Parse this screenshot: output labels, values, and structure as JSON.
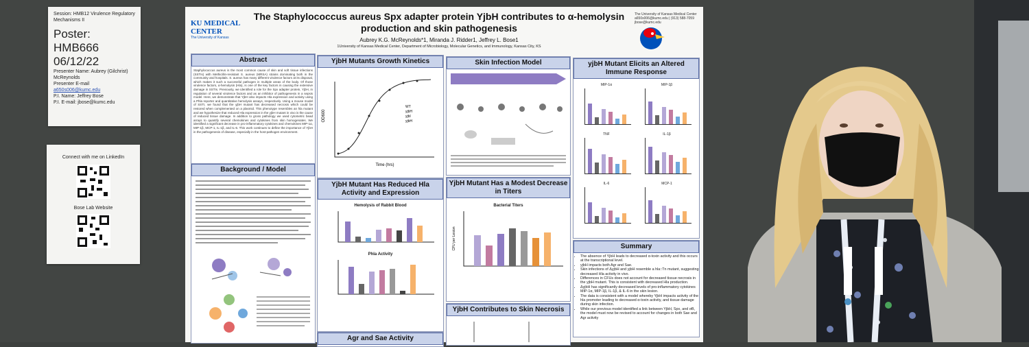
{
  "session_card": {
    "session": "Session: HMB12 Virulence Regulatory Mechanisms II",
    "poster_label": "Poster:",
    "poster_number": "HMB666",
    "date": "06/12/22",
    "presenter_name": "Presenter Name: Aubrey (Gilchrist) McReynolds",
    "presenter_email_label": "Presenter E-mail",
    "presenter_email": "a650s006@kumc.edu",
    "pi_name": "P.I. Name: Jeffrey Bose",
    "pi_email": "P.I. E-mail: jbose@kumc.edu"
  },
  "linkedin_card": {
    "connect": "Connect with me on LinkedIn",
    "lab_site": "Bose Lab Website"
  },
  "poster": {
    "logo": "KU MEDICAL CENTER",
    "logo_sub": "The University of Kansas",
    "title": "The Staphylococcus aureus Spx adapter protein YjbH contributes to α-hemolysin production and skin pathogenesis",
    "authors": "Aubrey K.G. McReynolds*1, Miranda J. Ridder1, Jeffrey L. Bose1",
    "affiliation": "1University of Kansas Medical Center, Department of Microbiology, Molecular Genetics, and Immunology, Kansas City, KS",
    "contact": "The University of Kansas Medical Center a650s006@kumc.edu | (913) 588-7059 jbose@kumc.edu",
    "abstract": {
      "heading": "Abstract",
      "text": "Staphylococcus aureus is the most common cause of skin and soft tissue infections (SSTIs) with Methicillin-resistant S. aureus (MRSA) strains dominating both in the community and hospitals. S. aureus has many different virulence factors at its disposal, which makes it such a successful pathogen in multiple areas of the body. Of those virulence factors, α-hemolysin (Hla), is one of the key factors in causing the extensive damage in SSTIs. Previously, we identified a role for the Spx adapter protein, YjbH, in regulation of several virulence factors and as an inhibitor of pathogenesis in a sepsis model. Here, we demonstrate that YjbH also impacts Hla expression and activity using a Phla reporter and quantitative hemolysis assays, respectively. Using a mouse model of SSTI, we found that the yjbH mutant has decreased necrosis which could be restored when complemented on a plasmid. This phenotype resembles an hla mutant and we hypothesize that reduced Hla expression in the yjbH mutant in vivo is the cause of reduced tissue damage. In addition to gross pathology we used cytometric bead arrays to quantify several chemokines and cytokines from skin homogenates. We identified a significant decrease in pro-inflammatory cytokines and chemokines MIP-1α, MIP-1β, MCP-1, IL-1β, and IL-6. This work continues to define the importance of YjbH in the pathogenesis of disease, especially in the host-pathogen environment."
    },
    "background": {
      "heading": "Background / Model"
    },
    "growth": {
      "heading": "YjbH Mutants Growth Kinetics",
      "y_label": "OD600",
      "x_label": "Time (hrs)",
      "legend": [
        "WT",
        "yjbH",
        "yjbI",
        "yjbH"
      ]
    },
    "hla": {
      "heading": "YjbH Mutant Has Reduced Hla Activity and Expression",
      "chart1": "Hemolysis of Rabbit Blood",
      "chart2": "Phla Activity"
    },
    "agr": {
      "heading": "Agr and Sae Activity"
    },
    "skin_model": {
      "heading": "Skin Infection Model"
    },
    "titers": {
      "heading": "YjbH Mutant Has a Modest Decrease in Titers",
      "chart": "Bacterial Titers",
      "y_label": "CFU per Lesion"
    },
    "necrosis": {
      "heading": "YjbH Contributes to Skin Necrosis"
    },
    "immune": {
      "heading": "yjbH Mutant Elicits an Altered Immune Response",
      "panels": [
        "MIP-1α",
        "MIP-1β",
        "TNF",
        "IL-1β",
        "IL-6",
        "MCP-1"
      ]
    },
    "summary": {
      "heading": "Summary",
      "bullets": [
        "The absence of YjbH leads to decreased α-toxin activity and this occurs at the transcriptional level.",
        "yjbH impacts both Agr and Sae.",
        "Skin infections of ΔyjbH and yjbH resemble a hla::Tn mutant, suggesting decreased Hla activity in vivo.",
        "Differences in CFUs does not account for decreased tissue necrosis in the yjbH mutant. This is consistent with decreased Hla production.",
        "ΔyjbH has significantly decreased levels of pro-inflammatory cytokines MIP-1α, MIP-1β, IL-1β, & IL-6 in the skin lesion.",
        "The data is consistent with a model whereby YjbH impacts activity of the hla promoter leading to decreased α-toxin activity, and tissue damage during skin infection.",
        "While our previous model identified a link between YjbH, Spx, and σB, the model must now be revised to account for changes in both Sae and Agr activity"
      ]
    }
  }
}
